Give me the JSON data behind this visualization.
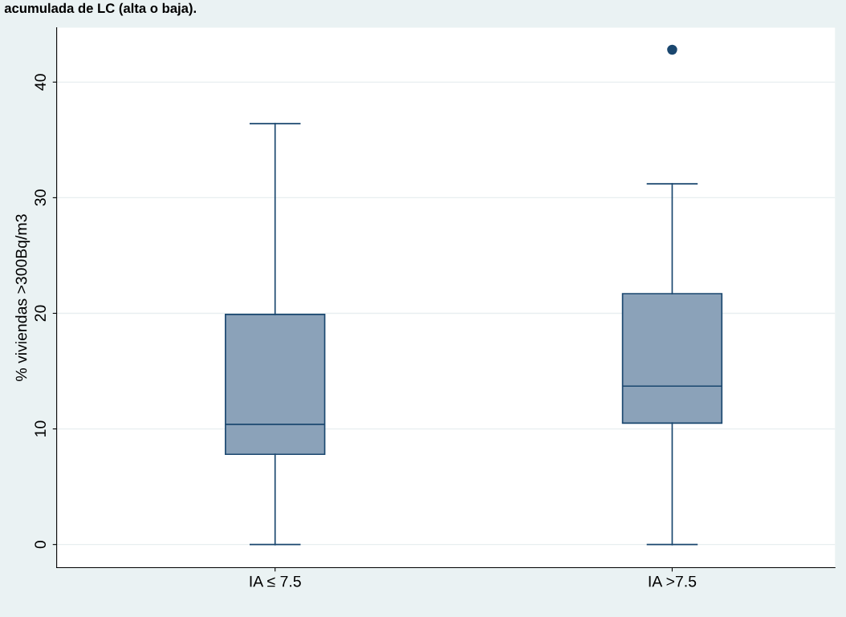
{
  "chart_data": {
    "type": "box",
    "title": "acumulada de LC (alta o baja).",
    "ylabel": "% viviendas >300Bq/m3",
    "categories": [
      "IA ≤ 7.5",
      "IA >7.5"
    ],
    "boxes": [
      {
        "low": 0,
        "q1": 7.8,
        "median": 10.4,
        "q3": 19.9,
        "high": 36.4
      },
      {
        "low": 0,
        "q1": 10.5,
        "median": 13.7,
        "q3": 21.7,
        "high": 31.2,
        "outliers": [
          42.8
        ]
      }
    ],
    "color": "#8ba2b9",
    "ylim": [
      -2,
      44.7
    ],
    "yticks": [
      0,
      10,
      20,
      30,
      40
    ],
    "grid": "y",
    "legend": false
  }
}
